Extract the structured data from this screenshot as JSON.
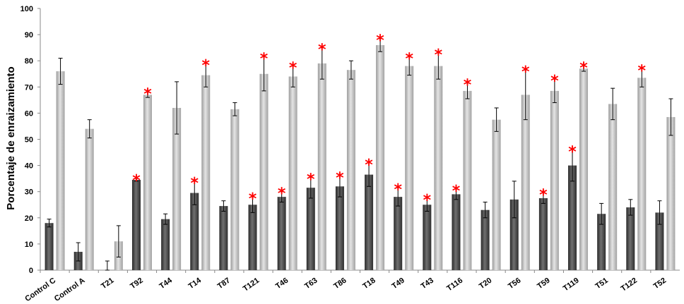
{
  "chart_data": {
    "type": "bar",
    "ylabel": "Porcentaje de enraizamiento",
    "xlabel": "",
    "ylim": [
      0,
      100
    ],
    "yticks": [
      0,
      10,
      20,
      30,
      40,
      50,
      60,
      70,
      80,
      90,
      100
    ],
    "grid": false,
    "categories": [
      "Control C",
      "Control A",
      "T21",
      "T92",
      "T44",
      "T14",
      "T87",
      "T121",
      "T46",
      "T63",
      "T86",
      "T18",
      "T49",
      "T43",
      "T116",
      "T20",
      "T56",
      "T59",
      "T119",
      "T51",
      "T122",
      "T52"
    ],
    "series": [
      {
        "color": "#454545",
        "values": [
          18,
          7,
          0,
          34.5,
          19.5,
          29.5,
          24.5,
          25,
          28,
          31.5,
          32,
          36.5,
          28,
          25,
          29,
          23,
          27,
          27.5,
          40,
          21.5,
          24,
          22
        ],
        "errors": [
          1.5,
          3.5,
          3.5,
          0.5,
          2,
          4.5,
          2,
          3,
          2,
          4,
          4,
          4.5,
          3.5,
          2.5,
          2,
          3,
          7,
          2,
          6,
          4,
          3,
          4.5
        ],
        "significant": [
          false,
          false,
          false,
          true,
          false,
          true,
          false,
          true,
          true,
          true,
          true,
          true,
          true,
          true,
          true,
          false,
          false,
          true,
          true,
          false,
          false,
          false
        ]
      },
      {
        "color": "#bdbdbd",
        "values": [
          76,
          54,
          11,
          67,
          62,
          74.5,
          61.5,
          75,
          74,
          79,
          76.5,
          86,
          78,
          78,
          68.5,
          57.5,
          67,
          68.5,
          77,
          63.5,
          73.5,
          58.5
        ],
        "errors": [
          5,
          3.5,
          6,
          1,
          10,
          4.5,
          2.5,
          6.5,
          4,
          6,
          3.5,
          2.5,
          3.5,
          5,
          3,
          4.5,
          9.5,
          4.5,
          1,
          6,
          3.5,
          7
        ],
        "significant": [
          false,
          false,
          false,
          true,
          false,
          true,
          false,
          true,
          true,
          true,
          false,
          true,
          true,
          true,
          true,
          false,
          true,
          true,
          true,
          false,
          true,
          false
        ]
      }
    ],
    "significance_marker": "*",
    "significance_color": "#ff0000"
  }
}
